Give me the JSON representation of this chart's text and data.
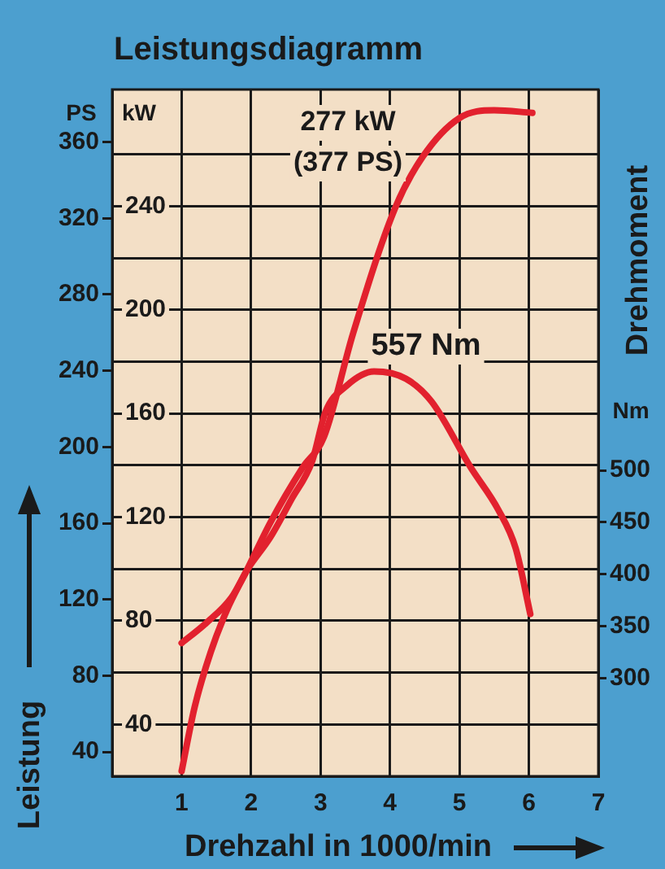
{
  "chart_data": {
    "type": "line",
    "title": "Leistungsdiagramm",
    "xlabel": "Drehzahl in 1000/min",
    "ylabel": "kW",
    "y2label": "PS",
    "y3label": "Nm",
    "annotations": [
      "Leistung",
      "Drehmoment",
      "277 kW\n(377 PS)",
      "557 Nm"
    ],
    "xlim": [
      0,
      7
    ],
    "xticks": [
      1,
      2,
      3,
      4,
      5,
      6,
      7
    ],
    "ylim": [
      20,
      285
    ],
    "yticks": [
      40,
      {
        "value": 60,
        "label": null
      },
      80,
      {
        "value": 100,
        "label": null
      },
      120,
      {
        "value": 140,
        "label": null
      },
      160,
      {
        "value": 180,
        "label": null
      },
      200,
      {
        "value": 220,
        "label": null
      },
      240,
      {
        "value": 260,
        "label": null
      }
    ],
    "y2lim": [
      27.2,
      387.6
    ],
    "y2ticks": [
      40,
      80,
      120,
      160,
      200,
      240,
      280,
      320,
      360
    ],
    "y3lim": [
      206,
      866
    ],
    "y3ticks": [
      300,
      350,
      400,
      450,
      500
    ],
    "grid": true,
    "legend": false,
    "marker": "none",
    "line_style": "solid",
    "series": [
      {
        "color": "#e2212e",
        "x": [
          1,
          1.19,
          1.42,
          1.65,
          1.93,
          2.28,
          2.74,
          3.05,
          3.47,
          4.07,
          4.47,
          5.0,
          5.5,
          6.05
        ],
        "values": [
          22,
          47,
          68,
          84,
          99,
          118,
          139,
          151,
          191,
          239,
          259,
          274,
          277,
          276
        ]
      },
      {
        "color": "#e2212e",
        "axis": "y3",
        "x": [
          1,
          1.35,
          1.72,
          1.95,
          2.28,
          2.58,
          2.88,
          3.07,
          3.37,
          3.77,
          4.23,
          4.6,
          5.16,
          5.56,
          5.81,
          6.02
        ],
        "values": [
          334,
          353,
          378,
          405,
          436,
          472,
          509,
          556,
          581,
          595,
          588,
          566,
          503,
          462,
          425,
          362
        ]
      }
    ]
  }
}
